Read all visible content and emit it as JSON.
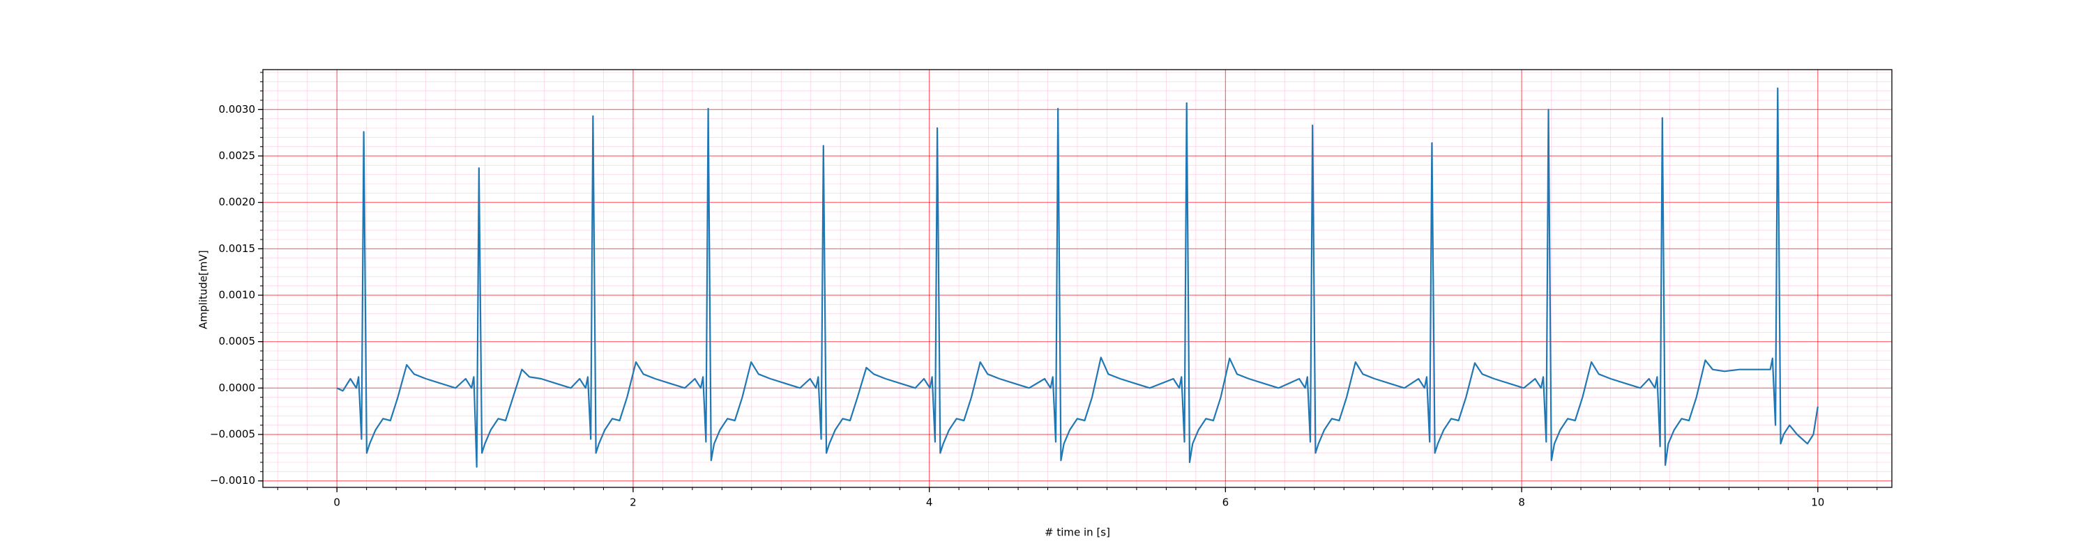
{
  "chart_data": {
    "type": "line",
    "xlabel": "# time in [s]",
    "ylabel": "Amplitude[mV]",
    "color": "#1f77b4",
    "grid": {
      "major_color": "#ff0000",
      "minor_color": "#ffb6d9",
      "minor_x_divisions": 10,
      "minor_y_divisions": 5
    },
    "xlim": [
      -0.5,
      10.5
    ],
    "xticks": [
      0,
      2,
      4,
      6,
      8,
      10
    ],
    "ylim": [
      -0.00107,
      0.00343
    ],
    "yticks": [
      {
        "value": -0.001,
        "label": "−0.0010"
      },
      {
        "value": -0.0005,
        "label": "−0.0005"
      },
      {
        "value": 0,
        "label": "0.0000"
      },
      {
        "value": 0.0005,
        "label": "0.0005"
      },
      {
        "value": 0.001,
        "label": "0.0010"
      },
      {
        "value": 0.0015,
        "label": "0.0015"
      },
      {
        "value": 0.002,
        "label": "0.0020"
      },
      {
        "value": 0.0025,
        "label": "0.0025"
      },
      {
        "value": 0.003,
        "label": "0.0030"
      }
    ],
    "x": [
      0,
      0.04,
      0.091,
      0.131,
      0.146,
      0.166,
      0.181,
      0.201,
      0.221,
      0.261,
      0.311,
      0.361,
      0.411,
      0.471,
      0.521,
      0.601,
      0.701,
      0.801,
      0.869,
      0.909,
      0.924,
      0.944,
      0.959,
      0.979,
      0.999,
      1.039,
      1.089,
      1.139,
      1.189,
      1.249,
      1.299,
      1.379,
      1.479,
      1.579,
      1.639,
      1.679,
      1.694,
      1.714,
      1.729,
      1.749,
      1.769,
      1.809,
      1.859,
      1.909,
      1.959,
      2.019,
      2.069,
      2.149,
      2.249,
      2.349,
      2.417,
      2.457,
      2.472,
      2.492,
      2.507,
      2.527,
      2.547,
      2.587,
      2.637,
      2.687,
      2.737,
      2.797,
      2.847,
      2.927,
      3.027,
      3.127,
      3.195,
      3.235,
      3.25,
      3.27,
      3.285,
      3.305,
      3.325,
      3.365,
      3.415,
      3.465,
      3.515,
      3.575,
      3.625,
      3.705,
      3.805,
      3.905,
      3.964,
      4.004,
      4.019,
      4.039,
      4.054,
      4.074,
      4.094,
      4.134,
      4.184,
      4.234,
      4.284,
      4.344,
      4.394,
      4.474,
      4.574,
      4.674,
      4.779,
      4.819,
      4.834,
      4.854,
      4.869,
      4.889,
      4.909,
      4.949,
      4.999,
      5.049,
      5.099,
      5.159,
      5.209,
      5.289,
      5.389,
      5.489,
      5.648,
      5.688,
      5.703,
      5.723,
      5.738,
      5.758,
      5.778,
      5.818,
      5.868,
      5.918,
      5.968,
      6.028,
      6.078,
      6.158,
      6.258,
      6.358,
      6.498,
      6.538,
      6.553,
      6.573,
      6.588,
      6.608,
      6.628,
      6.668,
      6.718,
      6.768,
      6.818,
      6.878,
      6.928,
      7.008,
      7.108,
      7.208,
      7.304,
      7.344,
      7.359,
      7.379,
      7.394,
      7.414,
      7.434,
      7.474,
      7.524,
      7.574,
      7.624,
      7.684,
      7.734,
      7.814,
      7.914,
      8.014,
      8.091,
      8.131,
      8.146,
      8.166,
      8.181,
      8.201,
      8.221,
      8.261,
      8.311,
      8.361,
      8.411,
      8.471,
      8.521,
      8.601,
      8.701,
      8.801,
      8.86,
      8.9,
      8.915,
      8.935,
      8.95,
      8.97,
      8.99,
      9.03,
      9.08,
      9.13,
      9.18,
      9.24,
      9.29,
      9.37,
      9.47,
      9.57,
      9.639,
      9.679,
      9.694,
      9.714,
      9.729,
      9.749,
      9.769,
      9.809,
      9.86,
      9.93,
      9.97,
      10.0
    ],
    "values": [
      0,
      -3e-05,
      0.0001,
      0,
      0.00012,
      -0.00055,
      0.00276,
      -0.0007,
      -0.0006,
      -0.00045,
      -0.00033,
      -0.00035,
      -0.0001,
      0.00025,
      0.00015,
      0.0001,
      5e-05,
      0,
      0.0001,
      0,
      0.00012,
      -0.00085,
      0.00237,
      -0.0007,
      -0.0006,
      -0.00045,
      -0.00033,
      -0.00035,
      -0.0001,
      0.0002,
      0.00012,
      0.0001,
      5e-05,
      0,
      0.0001,
      0,
      0.00012,
      -0.00055,
      0.00293,
      -0.0007,
      -0.0006,
      -0.00045,
      -0.00033,
      -0.00035,
      -0.0001,
      0.00028,
      0.00015,
      0.0001,
      5e-05,
      0,
      0.0001,
      0,
      0.00012,
      -0.00058,
      0.00301,
      -0.00078,
      -0.0006,
      -0.00045,
      -0.00033,
      -0.00035,
      -0.0001,
      0.00028,
      0.00015,
      0.0001,
      5e-05,
      0,
      0.0001,
      0,
      0.00012,
      -0.00055,
      0.00261,
      -0.0007,
      -0.0006,
      -0.00045,
      -0.00033,
      -0.00035,
      -0.0001,
      0.00022,
      0.00015,
      0.0001,
      5e-05,
      0,
      0.0001,
      0,
      0.00012,
      -0.00058,
      0.0028,
      -0.0007,
      -0.0006,
      -0.00045,
      -0.00033,
      -0.00035,
      -0.0001,
      0.00028,
      0.00015,
      0.0001,
      5e-05,
      0,
      0.0001,
      0,
      0.00012,
      -0.00058,
      0.00301,
      -0.00078,
      -0.0006,
      -0.00045,
      -0.00033,
      -0.00035,
      -0.0001,
      0.00033,
      0.00015,
      0.0001,
      5e-05,
      0,
      0.0001,
      0,
      0.00012,
      -0.00058,
      0.00307,
      -0.0008,
      -0.0006,
      -0.00045,
      -0.00033,
      -0.00035,
      -0.0001,
      0.00032,
      0.00015,
      0.0001,
      5e-05,
      0,
      0.0001,
      0,
      0.00012,
      -0.00058,
      0.00283,
      -0.0007,
      -0.0006,
      -0.00045,
      -0.00033,
      -0.00035,
      -0.0001,
      0.00028,
      0.00015,
      0.0001,
      5e-05,
      0,
      0.0001,
      0,
      0.00012,
      -0.00058,
      0.00264,
      -0.0007,
      -0.0006,
      -0.00045,
      -0.00033,
      -0.00035,
      -0.0001,
      0.00027,
      0.00015,
      0.0001,
      5e-05,
      0,
      0.0001,
      0,
      0.00012,
      -0.00058,
      0.003,
      -0.00078,
      -0.0006,
      -0.00045,
      -0.00033,
      -0.00035,
      -0.0001,
      0.00028,
      0.00015,
      0.0001,
      5e-05,
      0,
      0.0001,
      0,
      0.00012,
      -0.00063,
      0.00291,
      -0.00083,
      -0.0006,
      -0.00045,
      -0.00033,
      -0.00035,
      -0.0001,
      0.0003,
      0.0002,
      0.00018,
      0.0002,
      0.0002,
      0.0002,
      0.0002,
      0.00032,
      -0.0004,
      0.00323,
      -0.0006,
      -0.0005,
      -0.0004,
      -0.0005,
      -0.0006,
      -0.0005,
      -0.0002
    ]
  }
}
